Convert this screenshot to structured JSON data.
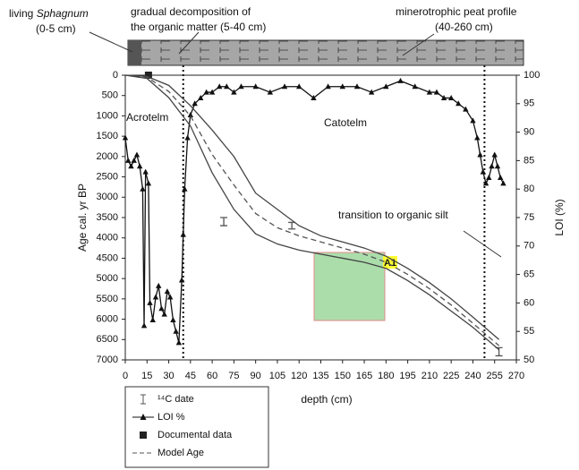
{
  "chart_data": {
    "type": "line",
    "annotations": {
      "living": "living",
      "sphagnum": "Sphagnum",
      "sphagnum_range": "(0-5 cm)",
      "decomp1": "gradual decomposition of",
      "decomp2": "the organic matter (5-40 cm)",
      "mineral1": "minerotrophic peat profile",
      "mineral2": "(40-260 cm)",
      "acrotelm": "Acrotelm",
      "catotelm": "Catotelm",
      "transition": "transition to organic silt",
      "box_label": "A1"
    },
    "xlabel": "depth (cm)",
    "ylabel": "Age cal. yr BP",
    "y2label": "LOI (%)",
    "xlim": [
      0,
      270
    ],
    "xticks": [
      0,
      15,
      30,
      45,
      60,
      75,
      90,
      105,
      120,
      135,
      150,
      165,
      180,
      195,
      210,
      225,
      240,
      255,
      270
    ],
    "ylim": [
      7000,
      0
    ],
    "yticks": [
      0,
      500,
      1000,
      1500,
      2000,
      2500,
      3000,
      3500,
      4000,
      4500,
      5000,
      5500,
      6000,
      6500,
      7000
    ],
    "y2lim": [
      50,
      100
    ],
    "y2ticks": [
      50,
      55,
      60,
      65,
      70,
      75,
      80,
      85,
      90,
      95,
      100
    ],
    "zone_boundaries": [
      40,
      248
    ],
    "series": [
      {
        "name": "¹⁴C date",
        "kind": "errorbar",
        "color": "#555555",
        "x": [
          68,
          115,
          258
        ],
        "values": [
          3600,
          3700,
          6800
        ],
        "errors": [
          100,
          80,
          100
        ]
      },
      {
        "name": "LOI %",
        "kind": "line-marker",
        "axis": "y2",
        "color": "#111111",
        "x": [
          0,
          2,
          4,
          6,
          8,
          10,
          12,
          13,
          14,
          16,
          17,
          19,
          21,
          23,
          25,
          27,
          29,
          31,
          33,
          35,
          37,
          39,
          40,
          41,
          43,
          45,
          48,
          52,
          56,
          60,
          65,
          70,
          75,
          80,
          90,
          100,
          110,
          120,
          130,
          140,
          150,
          160,
          170,
          180,
          190,
          200,
          210,
          215,
          220,
          225,
          230,
          235,
          240,
          243,
          245,
          247,
          249,
          251,
          253,
          255,
          257,
          259,
          261
        ],
        "values": [
          89,
          85,
          84,
          85,
          86,
          84,
          80,
          56,
          83,
          81,
          60,
          57,
          61,
          63,
          59,
          58,
          62,
          61,
          57,
          55,
          53,
          64,
          72,
          80,
          89,
          93,
          95,
          96,
          97,
          97,
          98,
          98,
          97,
          98,
          98,
          97,
          98,
          98,
          96,
          98,
          98,
          98,
          97,
          98,
          99,
          98,
          97,
          97,
          96,
          96,
          95,
          94,
          92,
          89,
          86,
          83,
          81,
          82,
          84,
          86,
          84,
          82,
          81
        ]
      },
      {
        "name": "Documental data",
        "kind": "square",
        "color": "#222222",
        "x": [
          16
        ],
        "values": [
          0
        ]
      },
      {
        "name": "Model Age",
        "kind": "dashed",
        "color": "#555555",
        "x": [
          0,
          15,
          30,
          45,
          60,
          75,
          90,
          105,
          120,
          135,
          150,
          165,
          180,
          195,
          210,
          225,
          240,
          258
        ],
        "values": [
          0,
          50,
          400,
          1000,
          1950,
          2700,
          3400,
          3750,
          3950,
          4100,
          4250,
          4400,
          4600,
          4900,
          5250,
          5650,
          6100,
          6650
        ]
      },
      {
        "kind": "solid",
        "color": "#444444",
        "x": [
          0,
          15,
          30,
          45,
          60,
          75,
          90,
          105,
          120,
          135,
          150,
          165,
          180,
          195,
          210,
          225,
          240,
          258
        ],
        "values": [
          0,
          30,
          250,
          750,
          1350,
          2000,
          2900,
          3300,
          3700,
          3950,
          4100,
          4250,
          4450,
          4750,
          5100,
          5500,
          5950,
          6500
        ]
      },
      {
        "kind": "solid",
        "color": "#444444",
        "x": [
          0,
          15,
          30,
          45,
          60,
          75,
          90,
          105,
          120,
          135,
          150,
          165,
          180,
          195,
          210,
          225,
          240,
          258
        ],
        "values": [
          0,
          80,
          550,
          1250,
          2400,
          3300,
          3900,
          4150,
          4300,
          4400,
          4500,
          4600,
          4750,
          5050,
          5400,
          5800,
          6200,
          6750
        ]
      }
    ]
  }
}
